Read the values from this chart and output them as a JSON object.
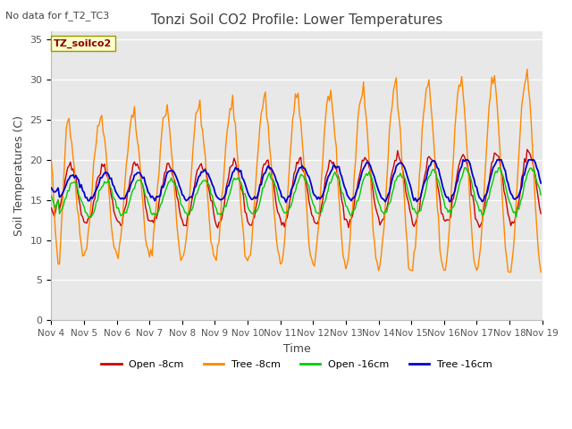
{
  "title": "Tonzi Soil CO2 Profile: Lower Temperatures",
  "subtitle": "No data for f_T2_TC3",
  "inset_label": "TZ_soilco2",
  "xlabel": "Time",
  "ylabel": "Soil Temperatures (C)",
  "ylim": [
    0,
    36
  ],
  "yticks": [
    0,
    5,
    10,
    15,
    20,
    25,
    30,
    35
  ],
  "x_labels": [
    "Nov 4",
    "Nov 5",
    "Nov 6",
    "Nov 7",
    "Nov 8",
    "Nov 9",
    "Nov 10",
    "Nov 11",
    "Nov 12",
    "Nov 13",
    "Nov 14",
    "Nov 15",
    "Nov 16",
    "Nov 17",
    "Nov 18",
    "Nov 19"
  ],
  "colors": {
    "open_8cm": "#cc0000",
    "tree_8cm": "#ff8800",
    "open_16cm": "#00cc00",
    "tree_16cm": "#0000cc"
  },
  "legend_labels": [
    "Open -8cm",
    "Tree -8cm",
    "Open -16cm",
    "Tree -16cm"
  ],
  "background_plot": "#e8e8e8",
  "background_fig": "#ffffff",
  "grid_color": "#ffffff",
  "inset_bg": "#ffffcc",
  "inset_text_color": "#880000",
  "label_color": "#555555",
  "title_color": "#444444"
}
